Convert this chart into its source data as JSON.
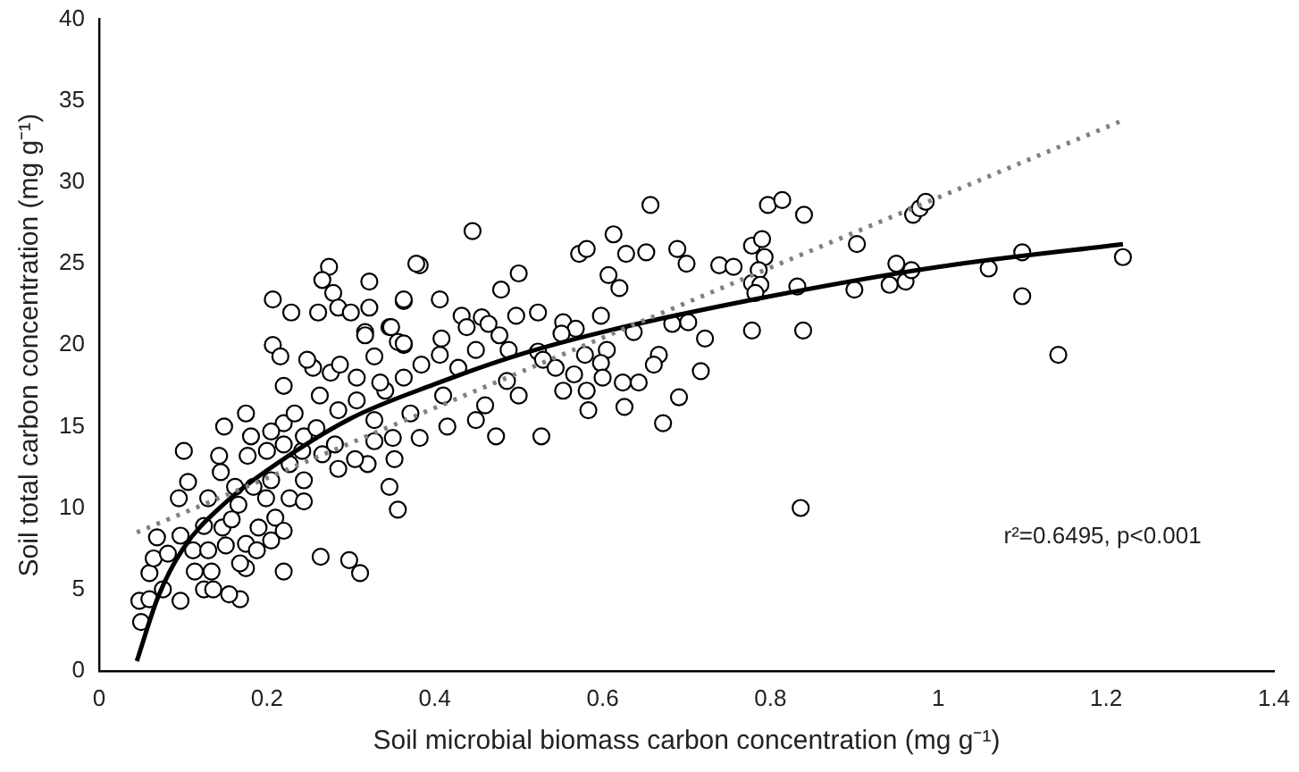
{
  "chart_data": {
    "type": "scatter",
    "xlabel": "Soil microbial biomass carbon concentration (mg g⁻¹)",
    "ylabel": "Soil total carbon concentration (mg g⁻¹)",
    "xlim": [
      0,
      1.4
    ],
    "xticks": [
      0,
      0.2,
      0.4,
      0.6,
      0.8,
      1,
      1.2,
      1.4
    ],
    "ylim": [
      0,
      40
    ],
    "yticks": [
      0,
      5,
      10,
      15,
      20,
      25,
      30,
      35,
      40
    ],
    "grid": false,
    "legend": false,
    "marker": "circle",
    "annotations": [
      "r²=0.6495, p<0.001"
    ],
    "series": [
      {
        "color": "#000000",
        "x": [
          0.797,
          0.814,
          0.84,
          0.778,
          0.79,
          0.793,
          0.786,
          0.778,
          0.788,
          0.782,
          0.832,
          0.778,
          0.839,
          0.836,
          0.903,
          0.9,
          0.942,
          0.95,
          0.961,
          0.968,
          0.97,
          0.978,
          0.985,
          1.06,
          1.1,
          1.1,
          1.143,
          1.22,
          0.657,
          0.445,
          0.382,
          0.5,
          0.613,
          0.572,
          0.581,
          0.628,
          0.652,
          0.689,
          0.7,
          0.739,
          0.756,
          0.607,
          0.62,
          0.479,
          0.363,
          0.406,
          0.523,
          0.497,
          0.432,
          0.456,
          0.553,
          0.598,
          0.568,
          0.551,
          0.477,
          0.438,
          0.464,
          0.683,
          0.702,
          0.722,
          0.637,
          0.408,
          0.488,
          0.449,
          0.523,
          0.529,
          0.579,
          0.605,
          0.598,
          0.667,
          0.661,
          0.717,
          0.544,
          0.566,
          0.6,
          0.624,
          0.643,
          0.553,
          0.581,
          0.626,
          0.691,
          0.583,
          0.672,
          0.473,
          0.527,
          0.356,
          0.363,
          0.406,
          0.428,
          0.41,
          0.449,
          0.382,
          0.415,
          0.46,
          0.486,
          0.5,
          0.384,
          0.371,
          0.207,
          0.216,
          0.22,
          0.101,
          0.106,
          0.095,
          0.149,
          0.175,
          0.143,
          0.181,
          0.264,
          0.298,
          0.311,
          0.22,
          0.175,
          0.048,
          0.05,
          0.06,
          0.076,
          0.097,
          0.125,
          0.168,
          0.155,
          0.06,
          0.065,
          0.069,
          0.082,
          0.097,
          0.114,
          0.134,
          0.136,
          0.112,
          0.13,
          0.151,
          0.175,
          0.125,
          0.147,
          0.166,
          0.13,
          0.199,
          0.21,
          0.205,
          0.22,
          0.19,
          0.158,
          0.188,
          0.168,
          0.162,
          0.145,
          0.184,
          0.205,
          0.227,
          0.244,
          0.244,
          0.177,
          0.2,
          0.227,
          0.22,
          0.242,
          0.22,
          0.244,
          0.205,
          0.233,
          0.259,
          0.266,
          0.285,
          0.32,
          0.346,
          0.281,
          0.305,
          0.263,
          0.285,
          0.307,
          0.328,
          0.276,
          0.255,
          0.248,
          0.307,
          0.287,
          0.317,
          0.328,
          0.356,
          0.346,
          0.363,
          0.341,
          0.35,
          0.328,
          0.352,
          0.335,
          0.274,
          0.266,
          0.322,
          0.207,
          0.229,
          0.279,
          0.261,
          0.285,
          0.3,
          0.322,
          0.363,
          0.348,
          0.317,
          0.363,
          0.378
        ],
        "values": [
          28.6,
          28.9,
          28.0,
          26.1,
          26.5,
          25.4,
          24.6,
          23.8,
          23.7,
          23.2,
          23.6,
          20.9,
          20.9,
          10.0,
          26.2,
          23.4,
          23.7,
          25.0,
          23.9,
          24.6,
          28.0,
          28.4,
          28.8,
          24.7,
          25.7,
          23.0,
          19.4,
          25.4,
          28.6,
          27.0,
          24.9,
          24.4,
          26.8,
          25.6,
          25.9,
          25.6,
          25.7,
          25.9,
          25.0,
          24.9,
          24.8,
          24.3,
          23.5,
          23.4,
          22.7,
          22.8,
          22.0,
          21.8,
          21.8,
          21.7,
          21.4,
          21.8,
          21.0,
          20.7,
          20.6,
          21.1,
          21.3,
          21.3,
          21.4,
          20.4,
          20.8,
          20.4,
          19.7,
          19.7,
          19.6,
          19.1,
          19.4,
          19.7,
          18.9,
          19.4,
          18.8,
          18.4,
          18.6,
          18.2,
          18.0,
          17.7,
          17.7,
          17.2,
          17.2,
          16.2,
          16.8,
          16.0,
          15.2,
          14.4,
          14.4,
          9.9,
          20.0,
          19.4,
          18.6,
          16.9,
          15.4,
          14.3,
          15.0,
          16.3,
          17.8,
          16.9,
          18.8,
          15.8,
          20.0,
          19.3,
          17.5,
          13.5,
          11.6,
          10.6,
          15.0,
          15.8,
          13.2,
          14.4,
          7.0,
          6.8,
          6.0,
          6.1,
          6.3,
          4.3,
          3.0,
          4.4,
          5.0,
          4.3,
          5.0,
          4.4,
          4.7,
          6.0,
          6.9,
          8.2,
          7.2,
          8.3,
          6.1,
          6.1,
          5.0,
          7.4,
          7.4,
          7.7,
          7.8,
          8.9,
          8.8,
          10.2,
          10.6,
          10.6,
          9.4,
          8.0,
          8.6,
          8.8,
          9.3,
          7.4,
          6.6,
          11.3,
          12.2,
          11.3,
          11.7,
          10.6,
          10.4,
          11.7,
          13.2,
          13.5,
          12.7,
          13.9,
          13.5,
          15.2,
          14.4,
          14.7,
          15.8,
          14.9,
          13.3,
          12.4,
          12.7,
          11.3,
          13.9,
          13.0,
          16.9,
          16.0,
          16.6,
          15.4,
          18.3,
          18.6,
          19.1,
          18.0,
          18.8,
          20.8,
          19.3,
          20.2,
          21.1,
          18.0,
          17.2,
          14.3,
          14.1,
          13.0,
          17.7,
          24.8,
          24.0,
          23.9,
          22.8,
          22.0,
          23.2,
          22.0,
          22.3,
          22.0,
          22.3,
          22.8,
          21.1,
          20.6,
          20.1,
          25.0
        ]
      },
      {
        "type": "line",
        "color": "#808080",
        "line_style": "dotted",
        "marker": "none",
        "x": [
          0.045,
          1.22
        ],
        "values": [
          8.5,
          33.8
        ]
      },
      {
        "type": "line",
        "color": "#000000",
        "line_style": "solid",
        "marker": "none",
        "x": [
          0.045,
          0.07,
          0.1,
          0.15,
          0.2,
          0.3,
          0.4,
          0.5,
          0.6,
          0.8,
          1.0,
          1.22
        ],
        "values": [
          0.6,
          4.5,
          7.5,
          10.3,
          12.3,
          15.5,
          17.6,
          19.4,
          20.8,
          23.0,
          24.8,
          26.2
        ]
      }
    ]
  }
}
